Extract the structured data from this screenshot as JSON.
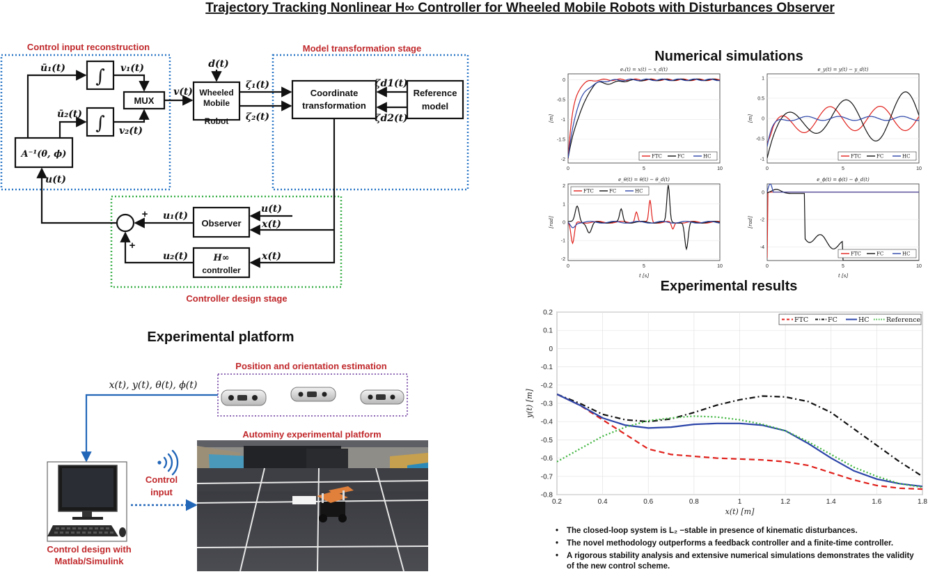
{
  "title": "Trajectory Tracking Nonlinear H∞ Controller for Wheeled Mobile Robots with Disturbances Observer",
  "control_diagram": {
    "box_control_input_label": "Control input reconstruction",
    "box_model_transform_label": "Model transformation stage",
    "box_controller_design_label": "Controller design stage",
    "blocks": {
      "inverse_matrix": "A⁻¹(θ, ϕ)",
      "mux": "MUX",
      "robot_l1": "Wheeled",
      "robot_l2": "Mobile",
      "robot_l3": "Robot",
      "coord_l1": "Coordinate",
      "coord_l2": "transformation",
      "ref_l1": "Reference",
      "ref_l2": "model",
      "observer": "Observer",
      "hinf_l1": "H∞",
      "hinf_l2": "controller",
      "integral_symbol": "∫"
    },
    "signals": {
      "ubar1": "ū₁(t)",
      "ubar2": "ū₂(t)",
      "v1": "v₁(t)",
      "v2": "v₂(t)",
      "v": "v(t)",
      "d": "d(t)",
      "zeta1": "ζ₁(t)",
      "zeta2": "ζ₂(t)",
      "zetad1": "ζd1(t)",
      "zetad2": "ζd2(t)",
      "u": "u(t)",
      "u1": "u₁(t)",
      "u2": "u₂(t)",
      "u_obs_in": "u(t)",
      "x_obs_in": "x(t)",
      "x_hinf_in": "x(t)",
      "plus1": "+",
      "plus2": "+"
    }
  },
  "numerical_simulations": {
    "heading": "Numerical simulations",
    "subplots": [
      {
        "title": "eₓ(t) = x(t) − x_d(t)",
        "ylabel": "[m]",
        "xlabel": "",
        "yticks": [
          "0",
          "-0.5",
          "-1",
          "-1.5",
          "-2"
        ],
        "xticks": [
          "0",
          "5",
          "10"
        ],
        "legend": [
          "FTC",
          "FC",
          "HC"
        ],
        "legend_position": "bottom-right"
      },
      {
        "title": "e_y(t) = y(t) − y_d(t)",
        "ylabel": "[m]",
        "xlabel": "",
        "yticks": [
          "1",
          "0.5",
          "0",
          "-0.5",
          "-1"
        ],
        "xticks": [
          "0",
          "5",
          "10"
        ],
        "legend": [
          "FTC",
          "FC",
          "HC"
        ],
        "legend_position": "bottom-right"
      },
      {
        "title": "e_θ(t) = θ(t) − θ_d(t)",
        "ylabel": "[rad]",
        "xlabel": "t [s]",
        "yticks": [
          "2",
          "1",
          "0",
          "-1",
          "-2"
        ],
        "xticks": [
          "0",
          "5",
          "10"
        ],
        "legend": [
          "FTC",
          "FC",
          "HC"
        ],
        "legend_position": "top-left"
      },
      {
        "title": "e_ϕ(t) = ϕ(t) − ϕ_d(t)",
        "ylabel": "[rad]",
        "xlabel": "t [s]",
        "yticks": [
          "0",
          "-2",
          "-4"
        ],
        "xticks": [
          "0",
          "5",
          "10"
        ],
        "legend": [
          "FTC",
          "FC",
          "HC"
        ],
        "legend_position": "bottom-right"
      }
    ]
  },
  "experimental_results": {
    "heading": "Experimental results",
    "chart_data": {
      "type": "line",
      "xlabel": "x(t) [m]",
      "ylabel": "y(t) [m]",
      "xlim": [
        0.2,
        1.8
      ],
      "ylim": [
        -0.8,
        0.2
      ],
      "xticks": [
        "0.2",
        "0.4",
        "0.6",
        "0.8",
        "1",
        "1.2",
        "1.4",
        "1.6",
        "1.8"
      ],
      "yticks": [
        "0.2",
        "0.1",
        "0",
        "-0.1",
        "-0.2",
        "-0.3",
        "-0.4",
        "-0.5",
        "-0.6",
        "-0.7",
        "-0.8"
      ],
      "grid": true,
      "legend_position": "top-right",
      "series": [
        {
          "name": "FTC",
          "color": "#e0201b",
          "dash": "dashed",
          "x": [
            0.2,
            0.3,
            0.4,
            0.5,
            0.6,
            0.7,
            0.8,
            0.9,
            1.0,
            1.1,
            1.2,
            1.3,
            1.4,
            1.5,
            1.6,
            1.7,
            1.8
          ],
          "y": [
            -0.25,
            -0.31,
            -0.39,
            -0.47,
            -0.55,
            -0.58,
            -0.59,
            -0.6,
            -0.605,
            -0.61,
            -0.62,
            -0.64,
            -0.68,
            -0.72,
            -0.75,
            -0.765,
            -0.77
          ]
        },
        {
          "name": "FC",
          "color": "#111111",
          "dash": "dashdot",
          "x": [
            0.2,
            0.3,
            0.4,
            0.5,
            0.6,
            0.7,
            0.8,
            0.9,
            1.0,
            1.1,
            1.2,
            1.3,
            1.4,
            1.5,
            1.6,
            1.7,
            1.8
          ],
          "y": [
            -0.25,
            -0.3,
            -0.36,
            -0.39,
            -0.4,
            -0.385,
            -0.35,
            -0.31,
            -0.28,
            -0.26,
            -0.265,
            -0.29,
            -0.35,
            -0.44,
            -0.53,
            -0.62,
            -0.7
          ]
        },
        {
          "name": "HC",
          "color": "#2b44a8",
          "dash": "solid",
          "x": [
            0.2,
            0.3,
            0.4,
            0.5,
            0.6,
            0.7,
            0.8,
            0.9,
            1.0,
            1.1,
            1.2,
            1.3,
            1.4,
            1.5,
            1.6,
            1.7,
            1.8
          ],
          "y": [
            -0.25,
            -0.31,
            -0.38,
            -0.42,
            -0.435,
            -0.43,
            -0.415,
            -0.41,
            -0.41,
            -0.42,
            -0.45,
            -0.52,
            -0.6,
            -0.67,
            -0.715,
            -0.74,
            -0.755
          ]
        },
        {
          "name": "Reference",
          "color": "#3cb43c",
          "dash": "dotted",
          "x": [
            0.2,
            0.3,
            0.4,
            0.5,
            0.6,
            0.7,
            0.8,
            0.9,
            1.0,
            1.1,
            1.2,
            1.3,
            1.4,
            1.5,
            1.6,
            1.7,
            1.8
          ],
          "y": [
            -0.62,
            -0.55,
            -0.48,
            -0.43,
            -0.395,
            -0.38,
            -0.37,
            -0.375,
            -0.39,
            -0.415,
            -0.45,
            -0.51,
            -0.58,
            -0.65,
            -0.7,
            -0.74,
            -0.76
          ]
        }
      ]
    }
  },
  "experimental_platform": {
    "heading": "Experimental platform",
    "estimation_label": "Position and orientation estimation",
    "state_signals": "x(t), y(t), θ(t), ϕ(t)",
    "platform_label": "Autominy experimental platform",
    "control_input_l1": "Control",
    "control_input_l2": "input",
    "design_l1": "Control design with",
    "design_l2": "Matlab/Simulink"
  },
  "bullets": [
    "The closed-loop system is L₂ −stable in presence of kinematic disturbances.",
    "The novel methodology outperforms a feedback controller and a finite-time controller.",
    "A rigorous stability analysis and extensive numerical simulations demonstrates the validity of the new control scheme."
  ],
  "colors": {
    "section_red": "#c0282b",
    "dotted_blue": "#2a77c6",
    "dotted_green": "#3db04b",
    "dotted_purple": "#7b4fa8",
    "signal_blue": "#2266b8"
  }
}
